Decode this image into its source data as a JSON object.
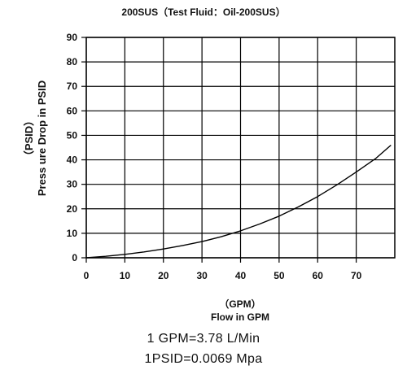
{
  "chart_data": {
    "type": "line",
    "title": "200SUS（Test Fluid：Oil-200SUS）",
    "ylabel_unit": "（PSID）",
    "ylabel": "Press ure Drop in PSID",
    "xlabel_unit": "（GPM）",
    "xlabel": "Flow in GPM",
    "xlim": [
      0,
      80
    ],
    "ylim": [
      0,
      90
    ],
    "x_ticks": [
      0,
      10,
      20,
      30,
      40,
      50,
      60,
      70
    ],
    "y_ticks": [
      0,
      10,
      20,
      30,
      40,
      50,
      60,
      70,
      80,
      90
    ],
    "grid": true,
    "series": [
      {
        "x": [
          0,
          5,
          10,
          15,
          20,
          25,
          30,
          35,
          40,
          45,
          50,
          55,
          60,
          65,
          70,
          75,
          79
        ],
        "y": [
          0,
          0.6,
          1.4,
          2.4,
          3.6,
          5.0,
          6.6,
          8.6,
          11.0,
          13.8,
          17.0,
          20.8,
          25.0,
          29.8,
          35.0,
          40.5,
          46
        ]
      }
    ]
  },
  "notes": {
    "gpm_conversion": "1 GPM=3.78 L/Min",
    "psid_conversion": "1PSID=0.0069 Mpa"
  }
}
